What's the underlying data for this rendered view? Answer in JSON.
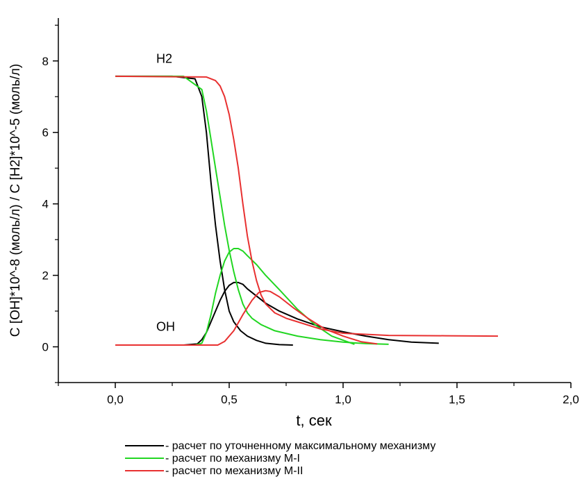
{
  "chart_data": {
    "type": "line",
    "title": "",
    "xlabel": "t, сек",
    "ylabel": "C [OH]*10^-8 (моль/л) / C [H2]*10^-5 (моль/л)",
    "xlim": [
      -0.25,
      2.0
    ],
    "ylim": [
      -1,
      9.2
    ],
    "x_ticks": [
      0.0,
      0.5,
      1.0,
      1.5,
      2.0
    ],
    "x_tick_labels": [
      "0,0",
      "0,5",
      "1,0",
      "1,5",
      "2,0"
    ],
    "y_ticks": [
      0,
      2,
      4,
      6,
      8
    ],
    "y_tick_labels": [
      "0",
      "2",
      "4",
      "6",
      "8"
    ],
    "grid": false,
    "legend_position": "bottom",
    "annotations": [
      {
        "text": "H2",
        "x": 0.18,
        "y": 7.95
      },
      {
        "text": "OH",
        "x": 0.18,
        "y": 0.45
      }
    ],
    "series": [
      {
        "name": "- расчет по уточненному максимальному механизму",
        "color": "#000000",
        "curves": [
          {
            "x": [
              0.0,
              0.25,
              0.35,
              0.38,
              0.4,
              0.42,
              0.44,
              0.46,
              0.48,
              0.5,
              0.52,
              0.55,
              0.58,
              0.62,
              0.66,
              0.72,
              0.78
            ],
            "y": [
              7.57,
              7.57,
              7.5,
              7.0,
              6.0,
              4.6,
              3.4,
              2.4,
              1.6,
              1.0,
              0.7,
              0.45,
              0.3,
              0.18,
              0.1,
              0.06,
              0.05
            ]
          },
          {
            "x": [
              0.0,
              0.3,
              0.36,
              0.38,
              0.4,
              0.42,
              0.44,
              0.46,
              0.48,
              0.5,
              0.52,
              0.54,
              0.56,
              0.58,
              0.62,
              0.66,
              0.72,
              0.8,
              0.9,
              1.0,
              1.1,
              1.2,
              1.3,
              1.42
            ],
            "y": [
              0.05,
              0.05,
              0.08,
              0.2,
              0.4,
              0.7,
              1.0,
              1.3,
              1.55,
              1.72,
              1.8,
              1.8,
              1.75,
              1.62,
              1.42,
              1.22,
              1.0,
              0.78,
              0.56,
              0.42,
              0.3,
              0.2,
              0.13,
              0.1
            ]
          }
        ]
      },
      {
        "name": "- расчет по механизму M-I",
        "color": "#21d621",
        "curves": [
          {
            "x": [
              0.0,
              0.3,
              0.38,
              0.4,
              0.42,
              0.44,
              0.46,
              0.48,
              0.5,
              0.52,
              0.54,
              0.56,
              0.58,
              0.6,
              0.64,
              0.7,
              0.8,
              0.9,
              1.0,
              1.1,
              1.2
            ],
            "y": [
              7.57,
              7.57,
              7.2,
              6.6,
              5.8,
              5.0,
              4.2,
              3.4,
              2.7,
              2.1,
              1.6,
              1.2,
              0.95,
              0.8,
              0.62,
              0.45,
              0.3,
              0.2,
              0.13,
              0.09,
              0.07
            ]
          },
          {
            "x": [
              0.0,
              0.35,
              0.38,
              0.4,
              0.42,
              0.44,
              0.46,
              0.48,
              0.5,
              0.52,
              0.54,
              0.56,
              0.58,
              0.62,
              0.66,
              0.72,
              0.8,
              0.88,
              0.95,
              1.05
            ],
            "y": [
              0.05,
              0.05,
              0.1,
              0.4,
              0.9,
              1.5,
              2.0,
              2.4,
              2.65,
              2.75,
              2.75,
              2.68,
              2.55,
              2.3,
              2.0,
              1.6,
              1.05,
              0.6,
              0.3,
              0.07
            ]
          }
        ]
      },
      {
        "name": "- расчет по механизму M-II",
        "color": "#e83030",
        "curves": [
          {
            "x": [
              0.0,
              0.4,
              0.44,
              0.46,
              0.48,
              0.5,
              0.52,
              0.54,
              0.56,
              0.58,
              0.6,
              0.62,
              0.64,
              0.66,
              0.7,
              0.75,
              0.8,
              0.9,
              1.0,
              1.2,
              1.45,
              1.68
            ],
            "y": [
              7.57,
              7.55,
              7.45,
              7.3,
              7.0,
              6.5,
              5.8,
              5.0,
              4.0,
              3.1,
              2.4,
              1.85,
              1.45,
              1.2,
              0.95,
              0.8,
              0.7,
              0.5,
              0.38,
              0.32,
              0.31,
              0.3
            ]
          },
          {
            "x": [
              0.0,
              0.45,
              0.48,
              0.52,
              0.56,
              0.6,
              0.63,
              0.66,
              0.68,
              0.72,
              0.78,
              0.85,
              0.92,
              1.0,
              1.08,
              1.15
            ],
            "y": [
              0.05,
              0.05,
              0.15,
              0.45,
              0.9,
              1.3,
              1.52,
              1.57,
              1.55,
              1.4,
              1.1,
              0.78,
              0.5,
              0.3,
              0.14,
              0.08
            ]
          }
        ]
      }
    ]
  }
}
